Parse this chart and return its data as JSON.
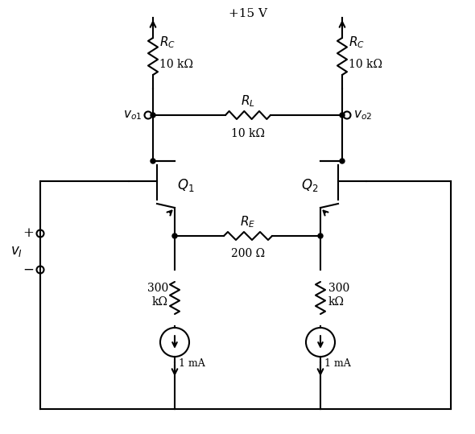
{
  "title": "+15 V",
  "background": "#ffffff",
  "line_color": "#000000",
  "lw": 1.5,
  "labels": {
    "RC_left": "R_C",
    "RC_left_val": "10 kΩ",
    "RC_right": "R_C",
    "RC_right_val": "10 kΩ",
    "RL": "R_L",
    "RL_val": "10 kΩ",
    "RE": "R_E",
    "RE_val": "200 Ω",
    "RB_left": "300\nkΩ",
    "RB_right": "300\nkΩ",
    "Q1": "Q_1",
    "Q2": "Q_2",
    "I1": "1 mA",
    "I2": "1 mA",
    "vo1": "v_{o1}",
    "vo2": "v_{o2}",
    "vI": "v_I",
    "plus": "+",
    "minus": "−"
  }
}
